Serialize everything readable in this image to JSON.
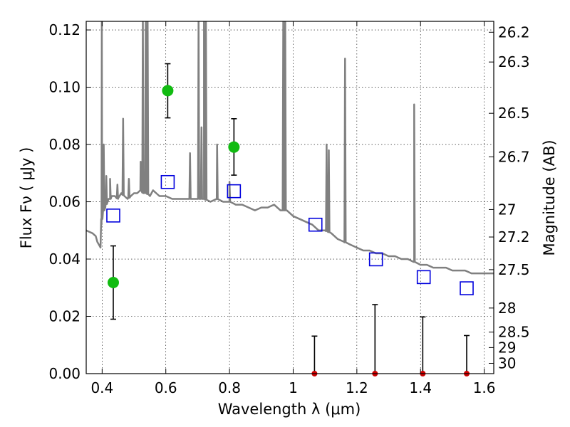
{
  "chart_data": {
    "type": "scatter",
    "xlabel": "Wavelength  λ (μm)",
    "ylabel_left": "Flux  Fν  ( μJy )",
    "ylabel_right": "Magnitude (AB)",
    "xlim": [
      0.35,
      1.63
    ],
    "ylim": [
      0.0,
      0.123
    ],
    "grid": true,
    "x_ticks": [
      0.4,
      0.6,
      0.8,
      1.0,
      1.2,
      1.4,
      1.6
    ],
    "x_tick_labels": [
      "0.4",
      "0.6",
      "0.8",
      "1",
      "1.2",
      "1.4",
      "1.6"
    ],
    "y_ticks": [
      0.0,
      0.02,
      0.04,
      0.06,
      0.08,
      0.1,
      0.12
    ],
    "y_tick_labels": [
      "0.00",
      "0.02",
      "0.04",
      "0.06",
      "0.08",
      "0.10",
      "0.12"
    ],
    "right_ticks": [
      {
        "label": "26.2",
        "flux": 0.1192
      },
      {
        "label": "26.3",
        "flux": 0.1088
      },
      {
        "label": "26.5",
        "flux": 0.0909
      },
      {
        "label": "26.7",
        "flux": 0.0757
      },
      {
        "label": "27",
        "flux": 0.0573
      },
      {
        "label": "27.2",
        "flux": 0.0477
      },
      {
        "label": "27.5",
        "flux": 0.0363
      },
      {
        "label": "28",
        "flux": 0.0229
      },
      {
        "label": "28.5",
        "flux": 0.0145
      },
      {
        "label": "29",
        "flux": 0.0091
      },
      {
        "label": "30",
        "flux": 0.0036
      }
    ],
    "series": [
      {
        "kind": "model_spectrum",
        "color": "#808080",
        "x": [
          0.35,
          0.37,
          0.38,
          0.385,
          0.39,
          0.395,
          0.398,
          0.4,
          0.405,
          0.41,
          0.415,
          0.42,
          0.425,
          0.43,
          0.44,
          0.45,
          0.46,
          0.47,
          0.48,
          0.49,
          0.5,
          0.51,
          0.52,
          0.53,
          0.54,
          0.55,
          0.56,
          0.57,
          0.58,
          0.6,
          0.62,
          0.64,
          0.66,
          0.68,
          0.7,
          0.72,
          0.74,
          0.76,
          0.78,
          0.8,
          0.82,
          0.84,
          0.86,
          0.88,
          0.9,
          0.92,
          0.94,
          0.96,
          0.98,
          1.0,
          1.02,
          1.04,
          1.06,
          1.08,
          1.1,
          1.12,
          1.14,
          1.16,
          1.18,
          1.2,
          1.22,
          1.24,
          1.26,
          1.28,
          1.3,
          1.32,
          1.34,
          1.36,
          1.38,
          1.4,
          1.42,
          1.44,
          1.46,
          1.48,
          1.5,
          1.52,
          1.54,
          1.56,
          1.58,
          1.6,
          1.63
        ],
        "y": [
          0.05,
          0.049,
          0.048,
          0.046,
          0.045,
          0.044,
          0.052,
          0.056,
          0.057,
          0.058,
          0.06,
          0.061,
          0.061,
          0.062,
          0.062,
          0.061,
          0.063,
          0.062,
          0.061,
          0.062,
          0.063,
          0.063,
          0.064,
          0.063,
          0.063,
          0.062,
          0.064,
          0.063,
          0.062,
          0.062,
          0.061,
          0.061,
          0.061,
          0.061,
          0.061,
          0.061,
          0.06,
          0.061,
          0.06,
          0.06,
          0.059,
          0.059,
          0.058,
          0.057,
          0.058,
          0.058,
          0.059,
          0.057,
          0.057,
          0.055,
          0.054,
          0.053,
          0.052,
          0.05,
          0.05,
          0.049,
          0.047,
          0.046,
          0.045,
          0.044,
          0.043,
          0.043,
          0.042,
          0.042,
          0.041,
          0.041,
          0.04,
          0.04,
          0.039,
          0.038,
          0.038,
          0.037,
          0.037,
          0.037,
          0.036,
          0.036,
          0.036,
          0.035,
          0.035,
          0.035,
          0.035
        ]
      },
      {
        "kind": "emission_lines",
        "color": "#808080",
        "peaks": [
          {
            "x": 0.399,
            "y": 0.125
          },
          {
            "x": 0.405,
            "y": 0.08
          },
          {
            "x": 0.413,
            "y": 0.069
          },
          {
            "x": 0.425,
            "y": 0.068
          },
          {
            "x": 0.448,
            "y": 0.066
          },
          {
            "x": 0.466,
            "y": 0.089
          },
          {
            "x": 0.484,
            "y": 0.068
          },
          {
            "x": 0.521,
            "y": 0.074
          },
          {
            "x": 0.528,
            "y": 0.125
          },
          {
            "x": 0.537,
            "y": 0.125
          },
          {
            "x": 0.543,
            "y": 0.125
          },
          {
            "x": 0.676,
            "y": 0.077
          },
          {
            "x": 0.703,
            "y": 0.125
          },
          {
            "x": 0.712,
            "y": 0.086
          },
          {
            "x": 0.72,
            "y": 0.125
          },
          {
            "x": 0.726,
            "y": 0.125
          },
          {
            "x": 0.761,
            "y": 0.08
          },
          {
            "x": 0.8,
            "y": 0.067
          },
          {
            "x": 0.969,
            "y": 0.125
          },
          {
            "x": 0.975,
            "y": 0.125
          },
          {
            "x": 1.105,
            "y": 0.08
          },
          {
            "x": 1.112,
            "y": 0.078
          },
          {
            "x": 1.163,
            "y": 0.11
          },
          {
            "x": 1.38,
            "y": 0.094
          }
        ]
      },
      {
        "kind": "observed_detections",
        "color": "#11bb11",
        "points": [
          {
            "x": 0.435,
            "y": 0.0318,
            "err_low": 0.019,
            "err_high": 0.0446
          },
          {
            "x": 0.606,
            "y": 0.0988,
            "err_low": 0.0893,
            "err_high": 0.1082
          },
          {
            "x": 0.814,
            "y": 0.0791,
            "err_low": 0.0693,
            "err_high": 0.089
          }
        ]
      },
      {
        "kind": "model_bandpass_flux",
        "color": "#0000dd",
        "points": [
          {
            "x": 0.435,
            "y": 0.0552
          },
          {
            "x": 0.606,
            "y": 0.0669
          },
          {
            "x": 0.814,
            "y": 0.0637
          },
          {
            "x": 1.07,
            "y": 0.052
          },
          {
            "x": 1.26,
            "y": 0.0399
          },
          {
            "x": 1.41,
            "y": 0.0337
          },
          {
            "x": 1.545,
            "y": 0.0298
          }
        ]
      },
      {
        "kind": "upper_limits",
        "color": "#cc0000",
        "points": [
          {
            "x": 1.067,
            "y": 0.0,
            "err_high": 0.0131
          },
          {
            "x": 1.257,
            "y": 0.0,
            "err_high": 0.0241
          },
          {
            "x": 1.407,
            "y": 0.0,
            "err_high": 0.0198
          },
          {
            "x": 1.545,
            "y": 0.0,
            "err_high": 0.0133
          }
        ]
      }
    ]
  }
}
